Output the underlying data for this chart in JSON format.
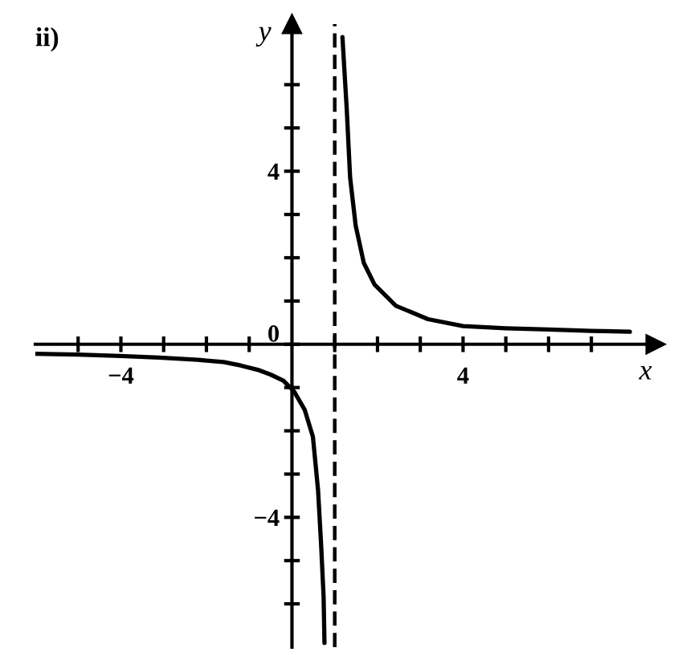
{
  "chart_data": {
    "type": "line",
    "title": "ii)",
    "xlabel": "x",
    "ylabel": "y",
    "x": [
      -6.0,
      -5,
      -4,
      -3.1,
      -2.2,
      -1.6,
      -1.2,
      -0.8,
      -0.5,
      -0.2,
      0.05,
      0.3,
      0.49,
      0.61,
      0.68,
      0.74,
      0.76,
      1,
      1.18,
      1.28,
      1.36,
      1.49,
      1.68,
      1.93,
      2.43,
      3.18,
      4,
      5,
      6,
      7,
      7.9
    ],
    "series": [
      {
        "color": "#000000",
        "values": [
          -0.22,
          -0.24,
          -0.27,
          -0.31,
          -0.36,
          -0.41,
          -0.49,
          -0.59,
          -0.7,
          -0.84,
          -1.09,
          -1.52,
          -2.14,
          -3.37,
          -4.6,
          -5.84,
          -6.9,
          null,
          7.1,
          5.45,
          3.85,
          2.74,
          1.88,
          1.38,
          0.89,
          0.58,
          0.42,
          0.37,
          0.34,
          0.31,
          0.29
        ]
      }
    ],
    "xlim": [
      -6,
      8.5
    ],
    "ylim": [
      -7,
      7.4
    ],
    "xticks": [
      {
        "value": -5,
        "label": null
      },
      {
        "value": -4,
        "label": "−4"
      },
      {
        "value": -3,
        "label": null
      },
      {
        "value": -2,
        "label": null
      },
      {
        "value": -1,
        "label": null
      },
      {
        "value": 1,
        "label": null
      },
      {
        "value": 2,
        "label": null
      },
      {
        "value": 3,
        "label": null
      },
      4,
      {
        "value": 5,
        "label": null
      },
      {
        "value": 6,
        "label": null
      },
      {
        "value": 7,
        "label": null
      }
    ],
    "yticks": [
      {
        "value": -6,
        "label": null
      },
      {
        "value": -5,
        "label": null
      },
      {
        "value": -4,
        "label": "−4"
      },
      {
        "value": -3,
        "label": null
      },
      {
        "value": -2,
        "label": null
      },
      {
        "value": -1,
        "label": null
      },
      0,
      {
        "value": 1,
        "label": null
      },
      {
        "value": 2,
        "label": null
      },
      {
        "value": 3,
        "label": null
      },
      4,
      {
        "value": 5,
        "label": null
      },
      {
        "value": 6,
        "label": null
      }
    ],
    "ref_lines": [
      {
        "axis": "x",
        "value": 1,
        "color": "#000000",
        "line_style": "dashed"
      }
    ]
  }
}
